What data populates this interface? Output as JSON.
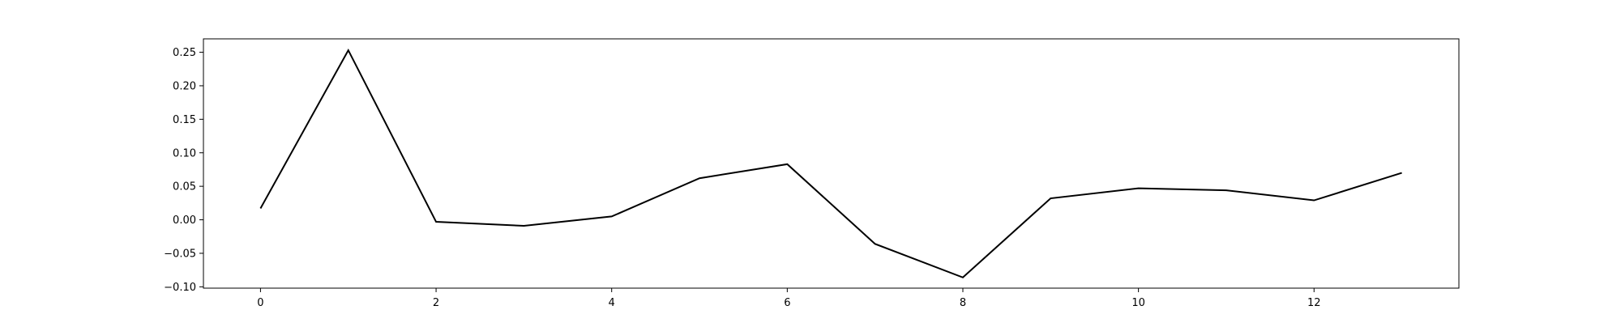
{
  "chart_data": {
    "type": "line",
    "title": "",
    "xlabel": "",
    "ylabel": "",
    "xlim": [
      -0.65,
      13.65
    ],
    "ylim": [
      -0.102,
      0.27
    ],
    "x_ticks": [
      0,
      2,
      4,
      6,
      8,
      10,
      12
    ],
    "x_tick_labels": [
      "0",
      "2",
      "4",
      "6",
      "8",
      "10",
      "12"
    ],
    "y_ticks": [
      0.25,
      0.2,
      0.15,
      0.1,
      0.05,
      0.0,
      -0.05,
      -0.1
    ],
    "y_tick_labels": [
      "0.25",
      "0.20",
      "0.15",
      "0.10",
      "0.05",
      "0.00",
      "−0.05",
      "−0.10"
    ],
    "grid": false,
    "legend": "none",
    "line_color": "#000000",
    "series": [
      {
        "x": [
          0,
          1,
          2,
          3,
          4,
          5,
          6,
          7,
          8,
          9,
          10,
          11,
          12,
          13
        ],
        "values": [
          0.017,
          0.253,
          -0.003,
          -0.009,
          0.005,
          0.062,
          0.083,
          -0.036,
          -0.086,
          0.032,
          0.047,
          0.044,
          0.029,
          0.07
        ]
      }
    ]
  }
}
